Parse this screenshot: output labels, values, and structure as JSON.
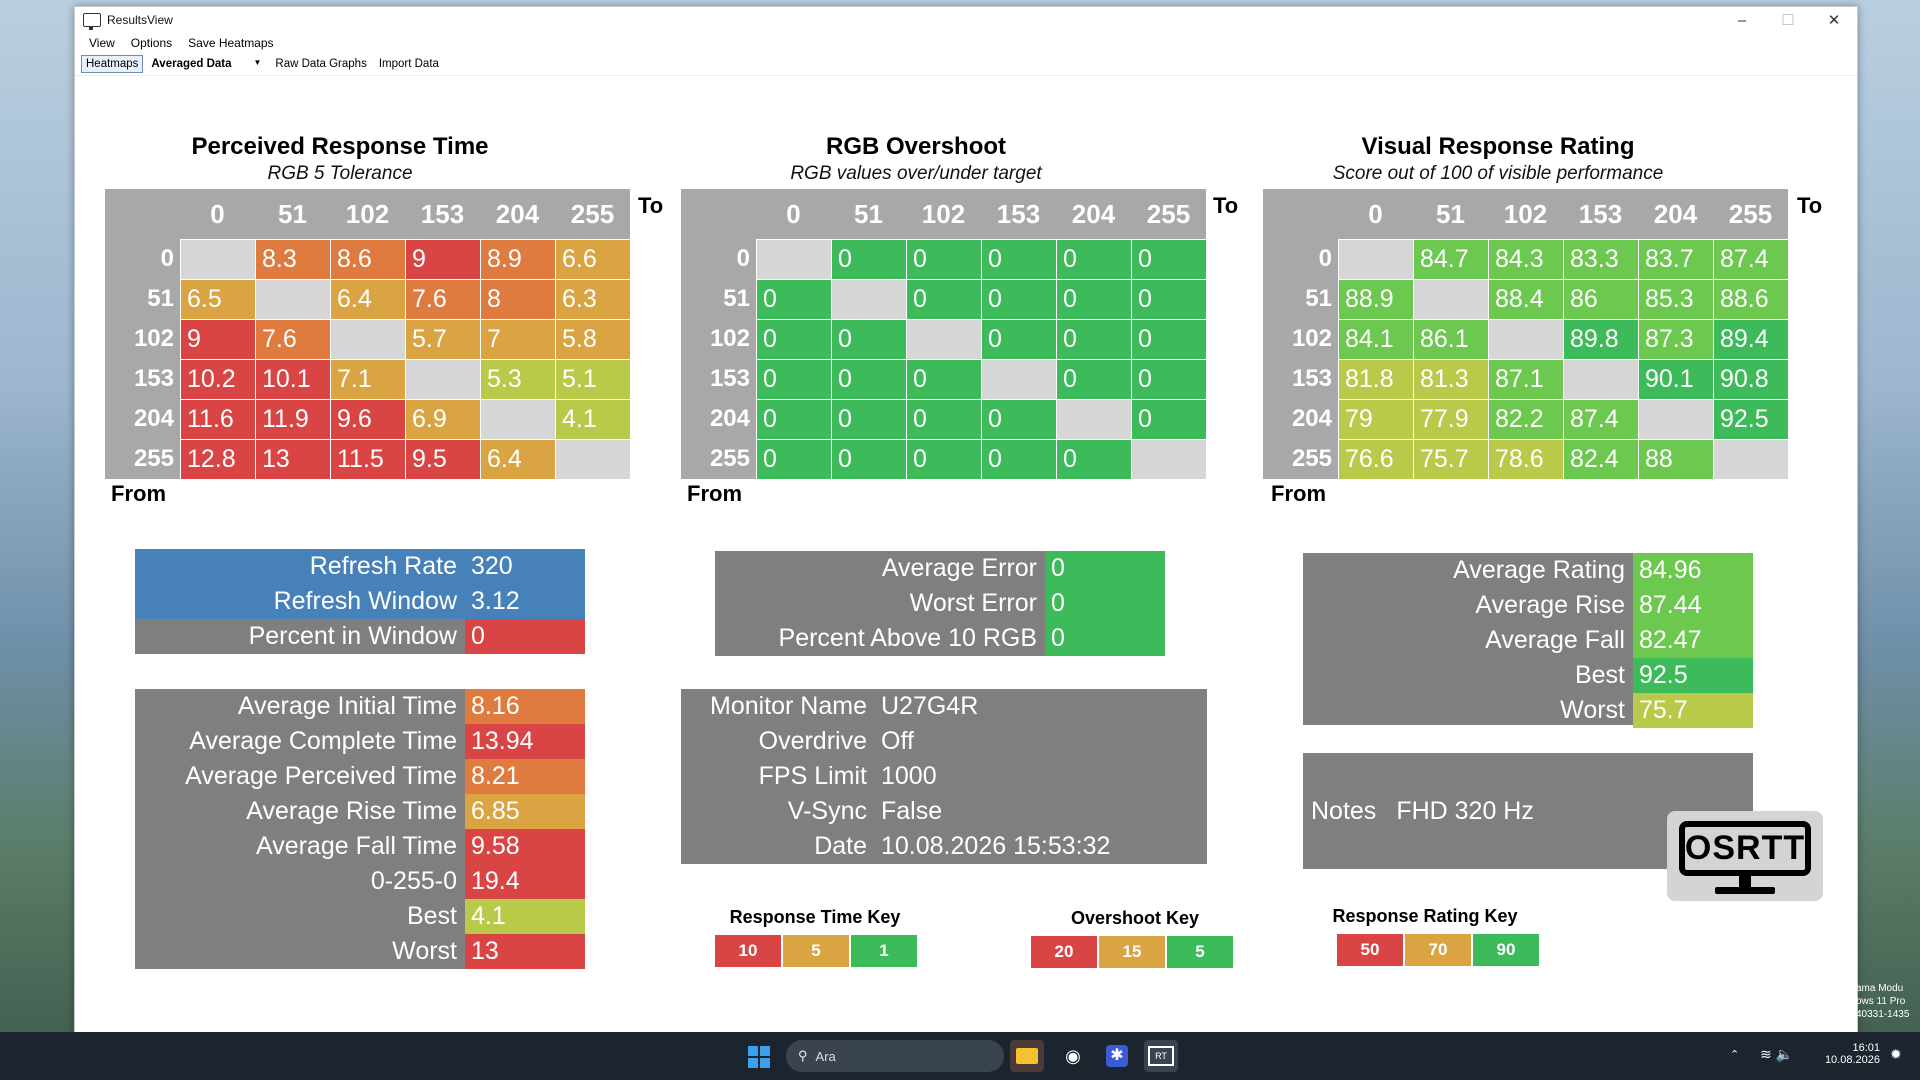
{
  "window": {
    "title": "ResultsView"
  },
  "menu": {
    "items": [
      "View",
      "Options",
      "Save Heatmaps"
    ]
  },
  "toolbar": {
    "heatmaps": "Heatmaps",
    "mode": "Averaged Data",
    "raw": "Raw Data Graphs",
    "import": "Import Data"
  },
  "axis": {
    "to": "To",
    "from": "From",
    "levels": [
      "0",
      "51",
      "102",
      "153",
      "204",
      "255"
    ]
  },
  "prt": {
    "title": "Perceived Response Time",
    "subtitle": "RGB 5 Tolerance",
    "rows": [
      [
        "",
        "8.3",
        "8.6",
        "9",
        "8.9",
        "6.6"
      ],
      [
        "6.5",
        "",
        "6.4",
        "7.6",
        "8",
        "6.3"
      ],
      [
        "9",
        "7.6",
        "",
        "5.7",
        "7",
        "5.8"
      ],
      [
        "10.2",
        "10.1",
        "7.1",
        "",
        "5.3",
        "5.1"
      ],
      [
        "11.6",
        "11.9",
        "9.6",
        "6.9",
        "",
        "4.1"
      ],
      [
        "12.8",
        "13",
        "11.5",
        "9.5",
        "6.4",
        ""
      ]
    ]
  },
  "ovs": {
    "title": "RGB Overshoot",
    "subtitle": "RGB values over/under target",
    "rows": [
      [
        "",
        "0",
        "0",
        "0",
        "0",
        "0"
      ],
      [
        "0",
        "",
        "0",
        "0",
        "0",
        "0"
      ],
      [
        "0",
        "0",
        "",
        "0",
        "0",
        "0"
      ],
      [
        "0",
        "0",
        "0",
        "",
        "0",
        "0"
      ],
      [
        "0",
        "0",
        "0",
        "0",
        "",
        "0"
      ],
      [
        "0",
        "0",
        "0",
        "0",
        "0",
        ""
      ]
    ]
  },
  "vrr": {
    "title": "Visual Response Rating",
    "subtitle": "Score out of 100 of visible performance",
    "rows": [
      [
        "",
        "84.7",
        "84.3",
        "83.3",
        "83.7",
        "87.4"
      ],
      [
        "88.9",
        "",
        "88.4",
        "86",
        "85.3",
        "88.6"
      ],
      [
        "84.1",
        "86.1",
        "",
        "89.8",
        "87.3",
        "89.4"
      ],
      [
        "81.8",
        "81.3",
        "87.1",
        "",
        "90.1",
        "90.8"
      ],
      [
        "79",
        "77.9",
        "82.2",
        "87.4",
        "",
        "92.5"
      ],
      [
        "76.6",
        "75.7",
        "78.6",
        "82.4",
        "88",
        ""
      ]
    ]
  },
  "refresh": [
    {
      "label": "Refresh Rate",
      "value": "320"
    },
    {
      "label": "Refresh Window",
      "value": "3.12"
    },
    {
      "label": "Percent in Window",
      "value": "0"
    }
  ],
  "times": [
    {
      "label": "Average Initial Time",
      "value": "8.16"
    },
    {
      "label": "Average Complete Time",
      "value": "13.94"
    },
    {
      "label": "Average Perceived Time",
      "value": "8.21"
    },
    {
      "label": "Average Rise Time",
      "value": "6.85"
    },
    {
      "label": "Average Fall Time",
      "value": "9.58"
    },
    {
      "label": "0-255-0",
      "value": "19.4"
    },
    {
      "label": "Best",
      "value": "4.1"
    },
    {
      "label": "Worst",
      "value": "13"
    }
  ],
  "errors": [
    {
      "label": "Average Error",
      "value": "0"
    },
    {
      "label": "Worst Error",
      "value": "0"
    },
    {
      "label": "Percent Above 10 RGB",
      "value": "0"
    }
  ],
  "monitor": [
    {
      "label": "Monitor Name",
      "value": "U27G4R"
    },
    {
      "label": "Overdrive",
      "value": "Off"
    },
    {
      "label": "FPS Limit",
      "value": "1000"
    },
    {
      "label": "V-Sync",
      "value": "False"
    },
    {
      "label": "Date",
      "value": "10.08.2026 15:53:32"
    }
  ],
  "ratings": [
    {
      "label": "Average Rating",
      "value": "84.96"
    },
    {
      "label": "Average Rise",
      "value": "87.44"
    },
    {
      "label": "Average Fall",
      "value": "82.47"
    },
    {
      "label": "Best",
      "value": "92.5"
    },
    {
      "label": "Worst",
      "value": "75.7"
    }
  ],
  "notes": {
    "label": "Notes",
    "value": "FHD 320 Hz"
  },
  "keys": {
    "response": {
      "title": "Response Time Key",
      "items": [
        "10",
        "5",
        "1"
      ]
    },
    "overshoot": {
      "title": "Overshoot Key",
      "items": [
        "20",
        "15",
        "5"
      ]
    },
    "rating": {
      "title": "Response Rating Key",
      "items": [
        "50",
        "70",
        "90"
      ]
    }
  },
  "logo": {
    "text": "OSRTT"
  },
  "taskbar": {
    "search": "Ara",
    "time": "16:01",
    "date": "10.08.2026"
  },
  "watermark": [
    "ama Modu",
    "ows 11 Pro",
    "40331-1435"
  ],
  "colors": {
    "red": "#d94545",
    "orange": "#e07b3f",
    "amber": "#d9a441",
    "yellowgreen": "#b9c94a",
    "green": "#3dbb5a",
    "lightgreen": "#6cc84e",
    "blue": "#4681b9",
    "gray": "#7f7f7f",
    "diag": "#d6d6d6"
  }
}
